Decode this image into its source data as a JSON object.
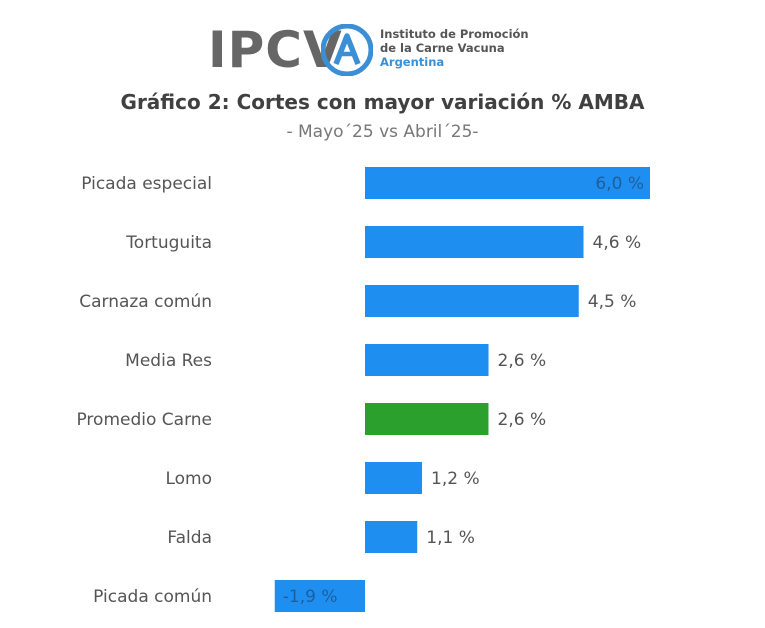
{
  "logo": {
    "word": "IPCV",
    "line1": "Instituto de Promoción",
    "line2": "de la Carne Vacuna",
    "line3": "Argentina"
  },
  "colors": {
    "bar": "#1f8ef1",
    "highlight": "#2ca02c",
    "label": "#555555",
    "logo_blue": "#3a8fd6"
  },
  "chart_data": {
    "type": "bar",
    "orientation": "horizontal",
    "title": "Gráfico 2: Cortes con mayor variación % AMBA",
    "subtitle": "- Mayo´25 vs Abril´25-",
    "categories": [
      "Picada especial",
      "Tortuguita",
      "Carnaza común",
      "Media Res",
      "Promedio Carne",
      "Lomo",
      "Falda",
      "Picada común"
    ],
    "values": [
      6.0,
      4.6,
      4.5,
      2.6,
      2.6,
      1.2,
      1.1,
      -1.9
    ],
    "value_labels": [
      "6,0 %",
      "4,6 %",
      "4,5 %",
      "2,6 %",
      "2,6 %",
      "1,2 %",
      "1,1 %",
      "-1,9 %"
    ],
    "highlight_category": "Promedio Carne",
    "xlim": [
      -2.5,
      7.5
    ],
    "grid": false,
    "legend": "none"
  }
}
